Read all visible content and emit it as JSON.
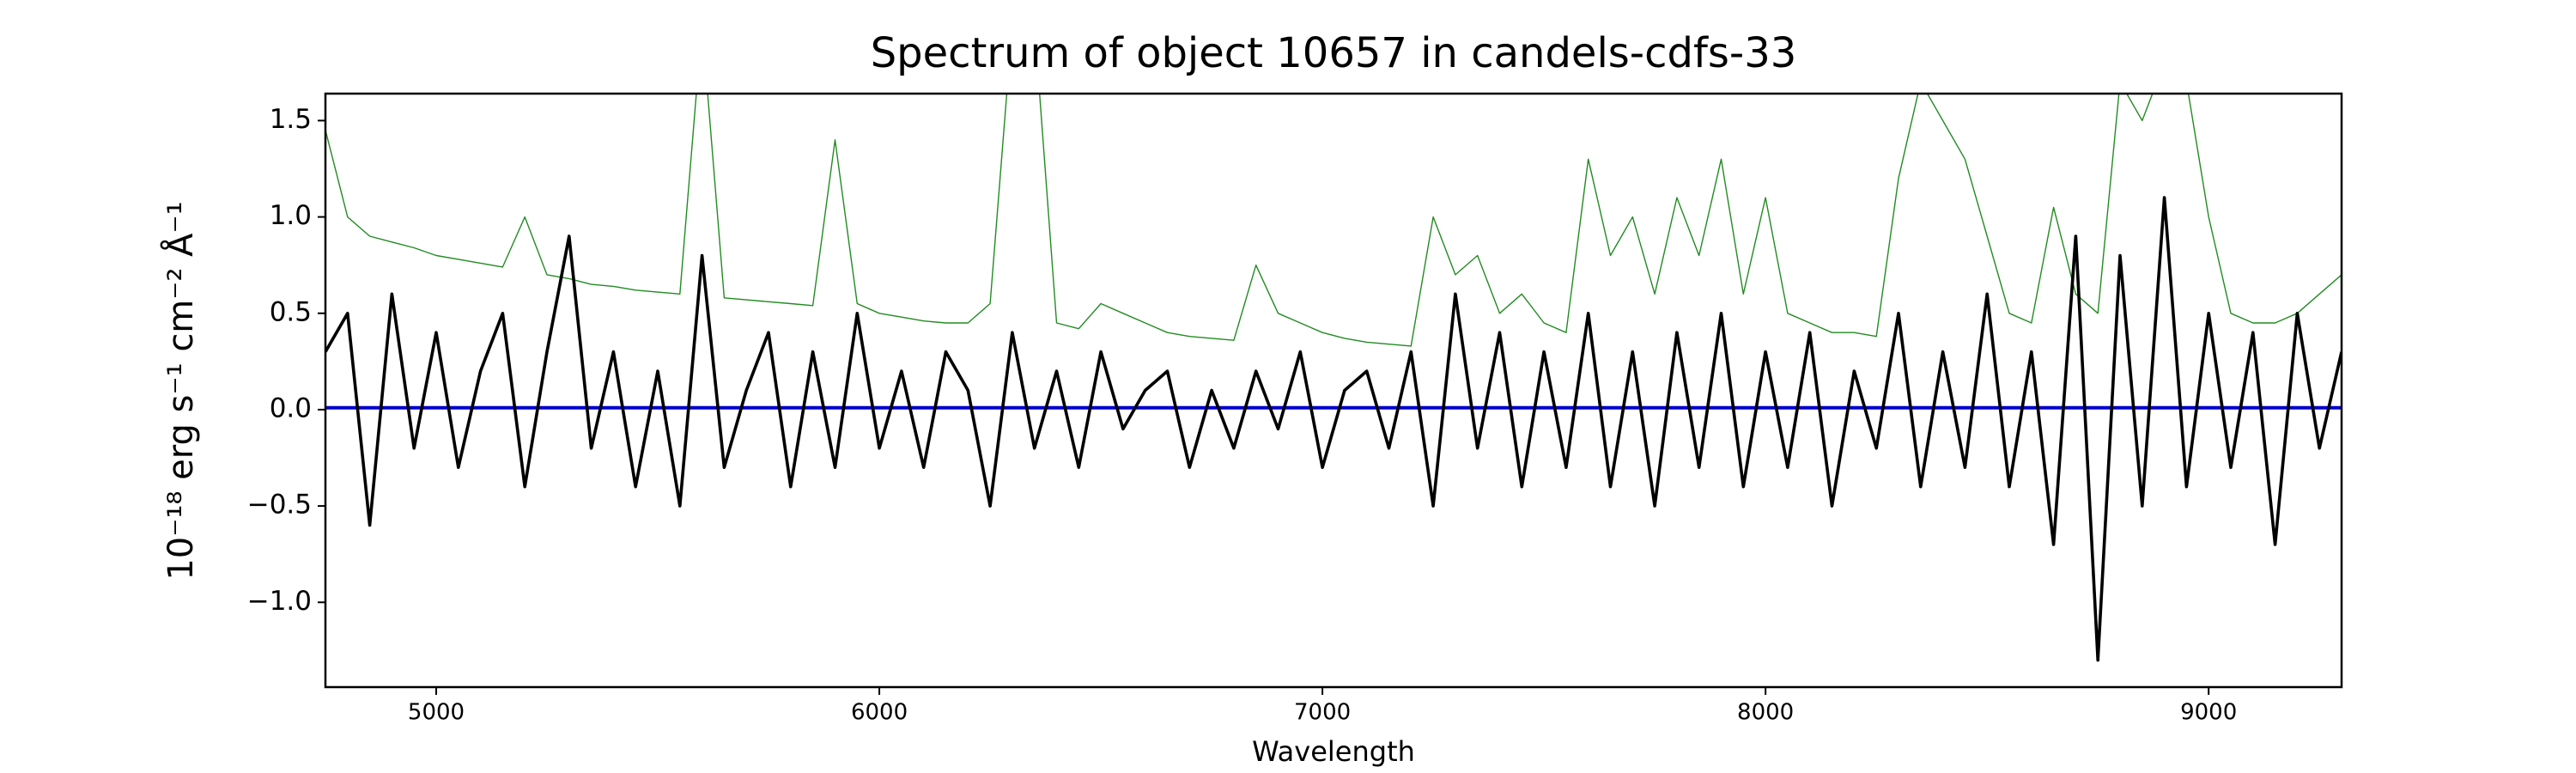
{
  "chart_data": {
    "type": "line",
    "title": "Spectrum of object 10657 in candels-cdfs-33",
    "xlabel": "Wavelength",
    "ylabel": "10⁻¹⁸ erg s⁻¹ cm⁻² Å⁻¹",
    "xlim": [
      4750,
      9300
    ],
    "ylim": [
      -1.44,
      1.64
    ],
    "xticks": [
      5000,
      6000,
      7000,
      8000,
      9000
    ],
    "yticks": [
      {
        "value": -1.0,
        "label": "−1.0"
      },
      {
        "value": -0.5,
        "label": "−0.5"
      },
      {
        "value": 0.0,
        "label": "0.0"
      },
      {
        "value": 0.5,
        "label": "0.5"
      },
      {
        "value": 1.0,
        "label": "1.0"
      },
      {
        "value": 1.5,
        "label": "1.5"
      }
    ],
    "x": [
      4750,
      4800,
      4850,
      4900,
      4950,
      5000,
      5050,
      5100,
      5150,
      5200,
      5250,
      5300,
      5350,
      5400,
      5450,
      5500,
      5550,
      5600,
      5650,
      5700,
      5750,
      5800,
      5850,
      5900,
      5950,
      6000,
      6050,
      6100,
      6150,
      6200,
      6250,
      6300,
      6350,
      6400,
      6450,
      6500,
      6550,
      6600,
      6650,
      6700,
      6750,
      6800,
      6850,
      6900,
      6950,
      7000,
      7050,
      7100,
      7150,
      7200,
      7250,
      7300,
      7350,
      7400,
      7450,
      7500,
      7550,
      7600,
      7650,
      7700,
      7750,
      7800,
      7850,
      7900,
      7950,
      8000,
      8050,
      8100,
      8150,
      8200,
      8250,
      8300,
      8350,
      8400,
      8450,
      8500,
      8550,
      8600,
      8650,
      8700,
      8750,
      8800,
      8850,
      8900,
      8950,
      9000,
      9050,
      9100,
      9150,
      9200,
      9250,
      9300
    ],
    "series": [
      {
        "color": "#228b22",
        "width": 1.4,
        "values": [
          1.45,
          1.0,
          0.9,
          0.87,
          0.84,
          0.8,
          0.78,
          0.76,
          0.74,
          1.0,
          0.7,
          0.68,
          0.65,
          0.64,
          0.62,
          0.61,
          0.6,
          2.0,
          0.58,
          0.57,
          0.56,
          0.55,
          0.54,
          1.4,
          0.55,
          0.5,
          0.48,
          0.46,
          0.45,
          0.45,
          0.55,
          2.0,
          2.0,
          0.45,
          0.42,
          0.55,
          0.5,
          0.45,
          0.4,
          0.38,
          0.37,
          0.36,
          0.75,
          0.5,
          0.45,
          0.4,
          0.37,
          0.35,
          0.34,
          0.33,
          1.0,
          0.7,
          0.8,
          0.5,
          0.6,
          0.45,
          0.4,
          1.3,
          0.8,
          1.0,
          0.6,
          1.1,
          0.8,
          1.3,
          0.6,
          1.1,
          0.5,
          0.45,
          0.4,
          0.4,
          0.38,
          1.2,
          1.7,
          1.5,
          1.3,
          0.9,
          0.5,
          0.45,
          1.05,
          0.6,
          0.5,
          1.7,
          1.5,
          1.8,
          1.7,
          1.0,
          0.5,
          0.45,
          0.45,
          0.5,
          0.6,
          0.7
        ]
      },
      {
        "color": "#0000cd",
        "width": 4,
        "values": [
          0.01,
          0.01,
          0.01,
          0.01,
          0.01,
          0.01,
          0.01,
          0.01,
          0.01,
          0.01,
          0.01,
          0.01,
          0.01,
          0.01,
          0.01,
          0.01,
          0.01,
          0.01,
          0.01,
          0.01,
          0.01,
          0.01,
          0.01,
          0.01,
          0.01,
          0.01,
          0.01,
          0.01,
          0.01,
          0.01,
          0.01,
          0.01,
          0.01,
          0.01,
          0.01,
          0.01,
          0.01,
          0.01,
          0.01,
          0.01,
          0.01,
          0.01,
          0.01,
          0.01,
          0.01,
          0.01,
          0.01,
          0.01,
          0.01,
          0.01,
          0.01,
          0.01,
          0.01,
          0.01,
          0.01,
          0.01,
          0.01,
          0.01,
          0.01,
          0.01,
          0.01,
          0.01,
          0.01,
          0.01,
          0.01,
          0.01,
          0.01,
          0.01,
          0.01,
          0.01,
          0.01,
          0.01,
          0.01,
          0.01,
          0.01,
          0.01,
          0.01,
          0.01,
          0.01,
          0.01,
          0.01,
          0.01,
          0.01,
          0.01,
          0.01,
          0.01,
          0.01,
          0.01,
          0.01,
          0.01,
          0.01,
          0.01
        ]
      },
      {
        "color": "#000000",
        "width": 3.6,
        "values": [
          0.3,
          0.5,
          -0.6,
          0.6,
          -0.2,
          0.4,
          -0.3,
          0.2,
          0.5,
          -0.4,
          0.3,
          0.9,
          -0.2,
          0.3,
          -0.4,
          0.2,
          -0.5,
          0.8,
          -0.3,
          0.1,
          0.4,
          -0.4,
          0.3,
          -0.3,
          0.5,
          -0.2,
          0.2,
          -0.3,
          0.3,
          0.1,
          -0.5,
          0.4,
          -0.2,
          0.2,
          -0.3,
          0.3,
          -0.1,
          0.1,
          0.2,
          -0.3,
          0.1,
          -0.2,
          0.2,
          -0.1,
          0.3,
          -0.3,
          0.1,
          0.2,
          -0.2,
          0.3,
          -0.5,
          0.6,
          -0.2,
          0.4,
          -0.4,
          0.3,
          -0.3,
          0.5,
          -0.4,
          0.3,
          -0.5,
          0.4,
          -0.3,
          0.5,
          -0.4,
          0.3,
          -0.3,
          0.4,
          -0.5,
          0.2,
          -0.2,
          0.5,
          -0.4,
          0.3,
          -0.3,
          0.6,
          -0.4,
          0.3,
          -0.7,
          0.9,
          -1.3,
          0.8,
          -0.5,
          1.1,
          -0.4,
          0.5,
          -0.3,
          0.4,
          -0.7,
          0.5,
          -0.2,
          0.3
        ]
      }
    ]
  }
}
